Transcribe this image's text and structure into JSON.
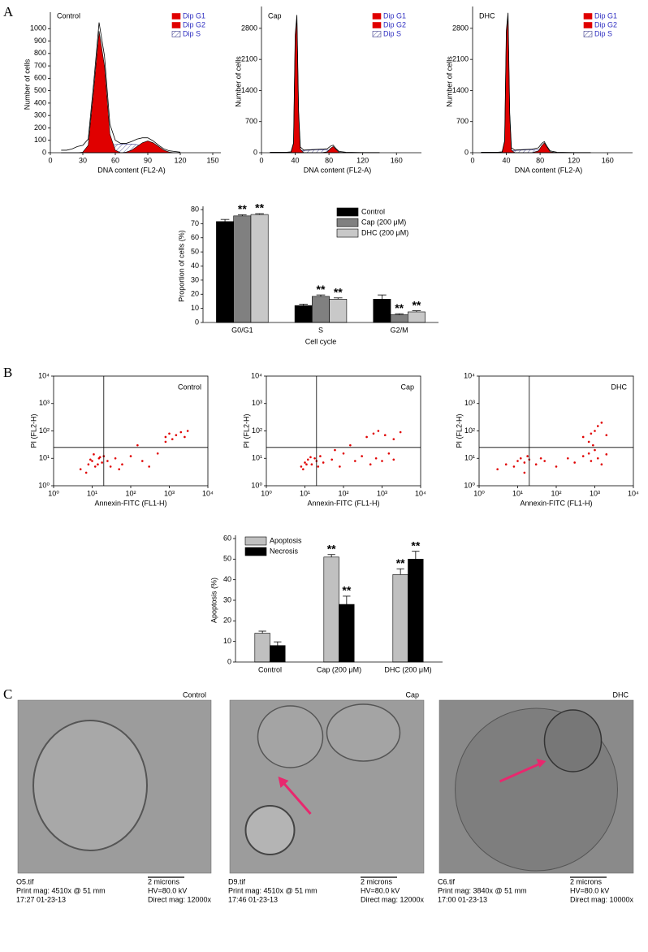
{
  "panel_labels": [
    "A",
    "B",
    "C"
  ],
  "chart_data": [
    {
      "type": "area",
      "title": "Control",
      "xlabel": "DNA content (FL2-A)",
      "ylabel": "Number of cells",
      "x": [
        10,
        15,
        20,
        25,
        30,
        35,
        40,
        45,
        50,
        55,
        60,
        65,
        70,
        75,
        80,
        85,
        90,
        95,
        100,
        105,
        110,
        115,
        120
      ],
      "xlim": [
        0,
        150
      ],
      "xticks": [
        0,
        30,
        60,
        90,
        120,
        150
      ],
      "ylim": [
        0,
        1100
      ],
      "yticks": [
        0,
        100,
        200,
        300,
        400,
        500,
        600,
        700,
        800,
        900,
        1000
      ],
      "series": [
        {
          "name": "Dip G1",
          "color": "#e00000",
          "style": "fill",
          "values": [
            0,
            0,
            0,
            0,
            5,
            60,
            500,
            980,
            700,
            150,
            20,
            0,
            0,
            0,
            0,
            0,
            0,
            0,
            0,
            0,
            0,
            0,
            0
          ]
        },
        {
          "name": "Dip G2",
          "color": "#e00000",
          "style": "fill",
          "values": [
            0,
            0,
            0,
            0,
            0,
            0,
            0,
            0,
            0,
            0,
            0,
            0,
            5,
            20,
            50,
            80,
            95,
            80,
            50,
            20,
            5,
            0,
            0
          ]
        },
        {
          "name": "Dip S",
          "color": "#3a3a8a",
          "style": "hatch",
          "values": [
            0,
            0,
            0,
            0,
            0,
            0,
            10,
            30,
            50,
            60,
            65,
            70,
            70,
            70,
            65,
            50,
            30,
            15,
            5,
            0,
            0,
            0,
            0
          ]
        },
        {
          "color": "#000000",
          "style": "line",
          "values": [
            20,
            20,
            30,
            50,
            60,
            110,
            560,
            1050,
            780,
            230,
            100,
            75,
            75,
            90,
            110,
            120,
            120,
            95,
            60,
            30,
            15,
            10,
            5
          ]
        }
      ]
    },
    {
      "type": "area",
      "title": "Cap",
      "xlabel": "DNA content (FL2-A)",
      "ylabel": "Number of cells",
      "x": [
        10,
        20,
        30,
        35,
        38,
        40,
        42,
        44,
        46,
        50,
        60,
        70,
        78,
        82,
        85,
        88,
        92,
        100,
        120,
        140
      ],
      "xlim": [
        0,
        180
      ],
      "xticks": [
        0,
        40,
        80,
        120,
        160
      ],
      "ylim": [
        0,
        3200
      ],
      "yticks": [
        0,
        700,
        1400,
        2100,
        2800
      ],
      "series": [
        {
          "name": "Dip G1",
          "color": "#e00000",
          "style": "fill",
          "values": [
            0,
            0,
            0,
            10,
            200,
            2600,
            3000,
            900,
            80,
            0,
            0,
            0,
            0,
            0,
            0,
            0,
            0,
            0,
            0,
            0
          ]
        },
        {
          "name": "Dip G2",
          "color": "#e00000",
          "style": "fill",
          "values": [
            0,
            0,
            0,
            0,
            0,
            0,
            0,
            0,
            0,
            0,
            0,
            0,
            20,
            100,
            140,
            80,
            10,
            0,
            0,
            0
          ]
        },
        {
          "name": "Dip S",
          "color": "#3a3a8a",
          "style": "hatch",
          "values": [
            0,
            0,
            0,
            0,
            0,
            0,
            0,
            30,
            40,
            50,
            60,
            70,
            60,
            40,
            20,
            10,
            0,
            0,
            0,
            0
          ]
        },
        {
          "color": "#000000",
          "style": "line",
          "values": [
            10,
            10,
            10,
            20,
            220,
            2650,
            3100,
            950,
            130,
            60,
            70,
            80,
            90,
            150,
            170,
            100,
            30,
            10,
            5,
            5
          ]
        }
      ]
    },
    {
      "type": "area",
      "title": "DHC",
      "xlabel": "DNA content (FL2-A)",
      "ylabel": "Number of cells",
      "x": [
        10,
        20,
        30,
        35,
        38,
        40,
        42,
        44,
        46,
        50,
        60,
        70,
        78,
        82,
        85,
        88,
        92,
        100,
        120,
        140
      ],
      "xlim": [
        0,
        180
      ],
      "xticks": [
        0,
        40,
        80,
        120,
        160
      ],
      "ylim": [
        0,
        3200
      ],
      "yticks": [
        0,
        700,
        1400,
        2100,
        2800
      ],
      "series": [
        {
          "name": "Dip G1",
          "color": "#e00000",
          "style": "fill",
          "values": [
            0,
            0,
            0,
            10,
            250,
            2700,
            3050,
            850,
            60,
            0,
            0,
            0,
            0,
            0,
            0,
            0,
            0,
            0,
            0,
            0
          ]
        },
        {
          "name": "Dip G2",
          "color": "#e00000",
          "style": "fill",
          "values": [
            0,
            0,
            0,
            0,
            0,
            0,
            0,
            0,
            0,
            0,
            0,
            0,
            40,
            160,
            220,
            130,
            20,
            0,
            0,
            0
          ]
        },
        {
          "name": "Dip S",
          "color": "#3a3a8a",
          "style": "hatch",
          "values": [
            0,
            0,
            0,
            0,
            0,
            0,
            0,
            30,
            40,
            50,
            60,
            70,
            60,
            40,
            20,
            10,
            0,
            0,
            0,
            0
          ]
        },
        {
          "color": "#000000",
          "style": "line",
          "values": [
            10,
            10,
            10,
            20,
            270,
            2750,
            3150,
            900,
            110,
            60,
            70,
            80,
            110,
            210,
            250,
            150,
            40,
            10,
            5,
            5
          ]
        }
      ]
    },
    {
      "type": "bar",
      "xlabel": "Cell cycle",
      "ylabel": "Proportion of cells (%)",
      "legend": "top-right",
      "categories": [
        "G0/G1",
        "S",
        "G2/M"
      ],
      "ylim": [
        0,
        80
      ],
      "yticks": [
        0,
        10,
        20,
        30,
        40,
        50,
        60,
        70,
        80
      ],
      "series": [
        {
          "name": "Control",
          "color": "#000000",
          "values": [
            71.5,
            12,
            16.5
          ],
          "errors": [
            1.5,
            1,
            3
          ]
        },
        {
          "name": "Cap (200 μM)",
          "color": "#808080",
          "values": [
            75.5,
            18.5,
            5.5
          ],
          "errors": [
            0.8,
            1,
            0.7
          ],
          "significance": [
            "**",
            "**",
            "**"
          ]
        },
        {
          "name": "DHC (200 μM)",
          "color": "#c8c8c8",
          "values": [
            76.5,
            16.5,
            7.5
          ],
          "errors": [
            0.6,
            0.9,
            0.8
          ],
          "significance": [
            "**",
            "**",
            "**"
          ]
        }
      ]
    },
    {
      "type": "scatter",
      "title": "Control",
      "xlabel": "Annexin-FITC (FL1-H)",
      "ylabel": "PI (FL2-H)",
      "xscale": "log",
      "yscale": "log",
      "color": "#e00000",
      "xlim": [
        1,
        10000
      ],
      "ylim": [
        1,
        10000
      ],
      "xticks": [
        {
          "value": 1,
          "label": "10⁰"
        },
        {
          "value": 10,
          "label": "10¹"
        },
        {
          "value": 100,
          "label": "10²"
        },
        {
          "value": 1000,
          "label": "10³"
        },
        {
          "value": 10000,
          "label": "10⁴"
        }
      ],
      "yticks": [
        {
          "value": 1,
          "label": "10⁰"
        },
        {
          "value": 10,
          "label": "10¹"
        },
        {
          "value": 100,
          "label": "10²"
        },
        {
          "value": 1000,
          "label": "10³"
        },
        {
          "value": 10000,
          "label": "10⁴"
        }
      ],
      "quadrant": {
        "x": 20,
        "y": 25
      },
      "x": [
        5,
        8,
        10,
        12,
        15,
        18,
        20,
        7,
        9,
        14,
        25,
        30,
        40,
        60,
        100,
        200,
        300,
        500,
        800,
        1000,
        1200,
        1500,
        2000,
        2500,
        3000,
        800,
        150,
        50,
        11,
        16
      ],
      "y": [
        4,
        6,
        8,
        5,
        10,
        7,
        12,
        3,
        9,
        6,
        8,
        5,
        10,
        6,
        12,
        8,
        5,
        15,
        60,
        80,
        50,
        70,
        90,
        60,
        100,
        40,
        30,
        4,
        14,
        11
      ]
    },
    {
      "type": "scatter",
      "title": "Cap",
      "xlabel": "Annexin-FITC (FL1-H)",
      "ylabel": "PI (FL2-H)",
      "xscale": "log",
      "yscale": "log",
      "color": "#e00000",
      "xlim": [
        1,
        10000
      ],
      "ylim": [
        1,
        10000
      ],
      "xticks": [
        {
          "value": 1,
          "label": "10⁰"
        },
        {
          "value": 10,
          "label": "10¹"
        },
        {
          "value": 100,
          "label": "10²"
        },
        {
          "value": 1000,
          "label": "10³"
        },
        {
          "value": 10000,
          "label": "10⁴"
        }
      ],
      "yticks": [
        {
          "value": 1,
          "label": "10⁰"
        },
        {
          "value": 10,
          "label": "10¹"
        },
        {
          "value": 100,
          "label": "10²"
        },
        {
          "value": 1000,
          "label": "10³"
        },
        {
          "value": 10000,
          "label": "10⁴"
        }
      ],
      "quadrant": {
        "x": 20,
        "y": 25
      },
      "x": [
        8,
        10,
        12,
        15,
        18,
        20,
        25,
        9,
        14,
        30,
        50,
        80,
        100,
        200,
        300,
        500,
        700,
        1000,
        1500,
        2000,
        400,
        600,
        800,
        1200,
        2000,
        3000,
        150,
        60,
        11,
        22
      ],
      "y": [
        5,
        7,
        9,
        6,
        10,
        8,
        12,
        4,
        11,
        7,
        9,
        5,
        15,
        8,
        12,
        6,
        10,
        8,
        15,
        9,
        60,
        80,
        100,
        70,
        50,
        90,
        30,
        20,
        6,
        5
      ]
    },
    {
      "type": "scatter",
      "title": "DHC",
      "xlabel": "Annexin-FITC (FL1-H)",
      "ylabel": "PI (FL2-H)",
      "xscale": "log",
      "yscale": "log",
      "color": "#e00000",
      "xlim": [
        1,
        10000
      ],
      "ylim": [
        1,
        10000
      ],
      "xticks": [
        {
          "value": 1,
          "label": "10⁰"
        },
        {
          "value": 10,
          "label": "10¹"
        },
        {
          "value": 100,
          "label": "10²"
        },
        {
          "value": 1000,
          "label": "10³"
        },
        {
          "value": 10000,
          "label": "10⁴"
        }
      ],
      "yticks": [
        {
          "value": 1,
          "label": "10⁰"
        },
        {
          "value": 10,
          "label": "10¹"
        },
        {
          "value": 100,
          "label": "10²"
        },
        {
          "value": 1000,
          "label": "10³"
        },
        {
          "value": 10000,
          "label": "10⁴"
        }
      ],
      "quadrant": {
        "x": 20,
        "y": 25
      },
      "x": [
        3,
        5,
        8,
        10,
        12,
        15,
        18,
        20,
        30,
        50,
        100,
        200,
        300,
        500,
        700,
        800,
        1000,
        1200,
        1500,
        2000,
        500,
        800,
        1000,
        1200,
        1500,
        2000,
        700,
        900,
        15,
        40
      ],
      "y": [
        4,
        6,
        5,
        8,
        10,
        7,
        12,
        9,
        6,
        8,
        5,
        10,
        7,
        12,
        15,
        8,
        20,
        10,
        6,
        14,
        60,
        80,
        100,
        150,
        200,
        70,
        40,
        30,
        3,
        10
      ]
    },
    {
      "type": "bar",
      "ylabel": "Apoptosis (%)",
      "legend": "top-left",
      "categories": [
        "Control",
        "Cap (200 μM)",
        "DHC (200 μM)"
      ],
      "ylim": [
        0,
        60
      ],
      "yticks": [
        0,
        10,
        20,
        30,
        40,
        50,
        60
      ],
      "series": [
        {
          "name": "Apoptosis",
          "color": "#c0c0c0",
          "values": [
            14,
            51,
            42.5
          ],
          "errors": [
            1,
            1.2,
            2.8
          ],
          "significance": [
            null,
            "**",
            "**"
          ]
        },
        {
          "name": "Necrosis",
          "color": "#000000",
          "values": [
            8,
            28,
            50
          ],
          "errors": [
            1.8,
            4,
            3.8
          ],
          "significance": [
            null,
            "**",
            "**"
          ]
        }
      ]
    }
  ],
  "micrographs": [
    {
      "label": "Control",
      "file": "O5.tif",
      "print": "Print mag: 4510x @ 51 mm",
      "time": "17:27 01-23-13",
      "scale": "2 microns",
      "hv": "HV=80.0 kV",
      "direct": "Direct mag: 12000x"
    },
    {
      "label": "Cap",
      "file": "D9.tif",
      "print": "Print mag: 4510x @ 51 mm",
      "time": "17:46 01-23-13",
      "scale": "2 microns",
      "hv": "HV=80.0 kV",
      "direct": "Direct mag: 12000x"
    },
    {
      "label": "DHC",
      "file": "C6.tif",
      "print": "Print mag: 3840x @ 51 mm",
      "time": "17:00 01-23-13",
      "scale": "2 microns",
      "hv": "HV=80.0 kV",
      "direct": "Direct mag: 10000x"
    }
  ]
}
